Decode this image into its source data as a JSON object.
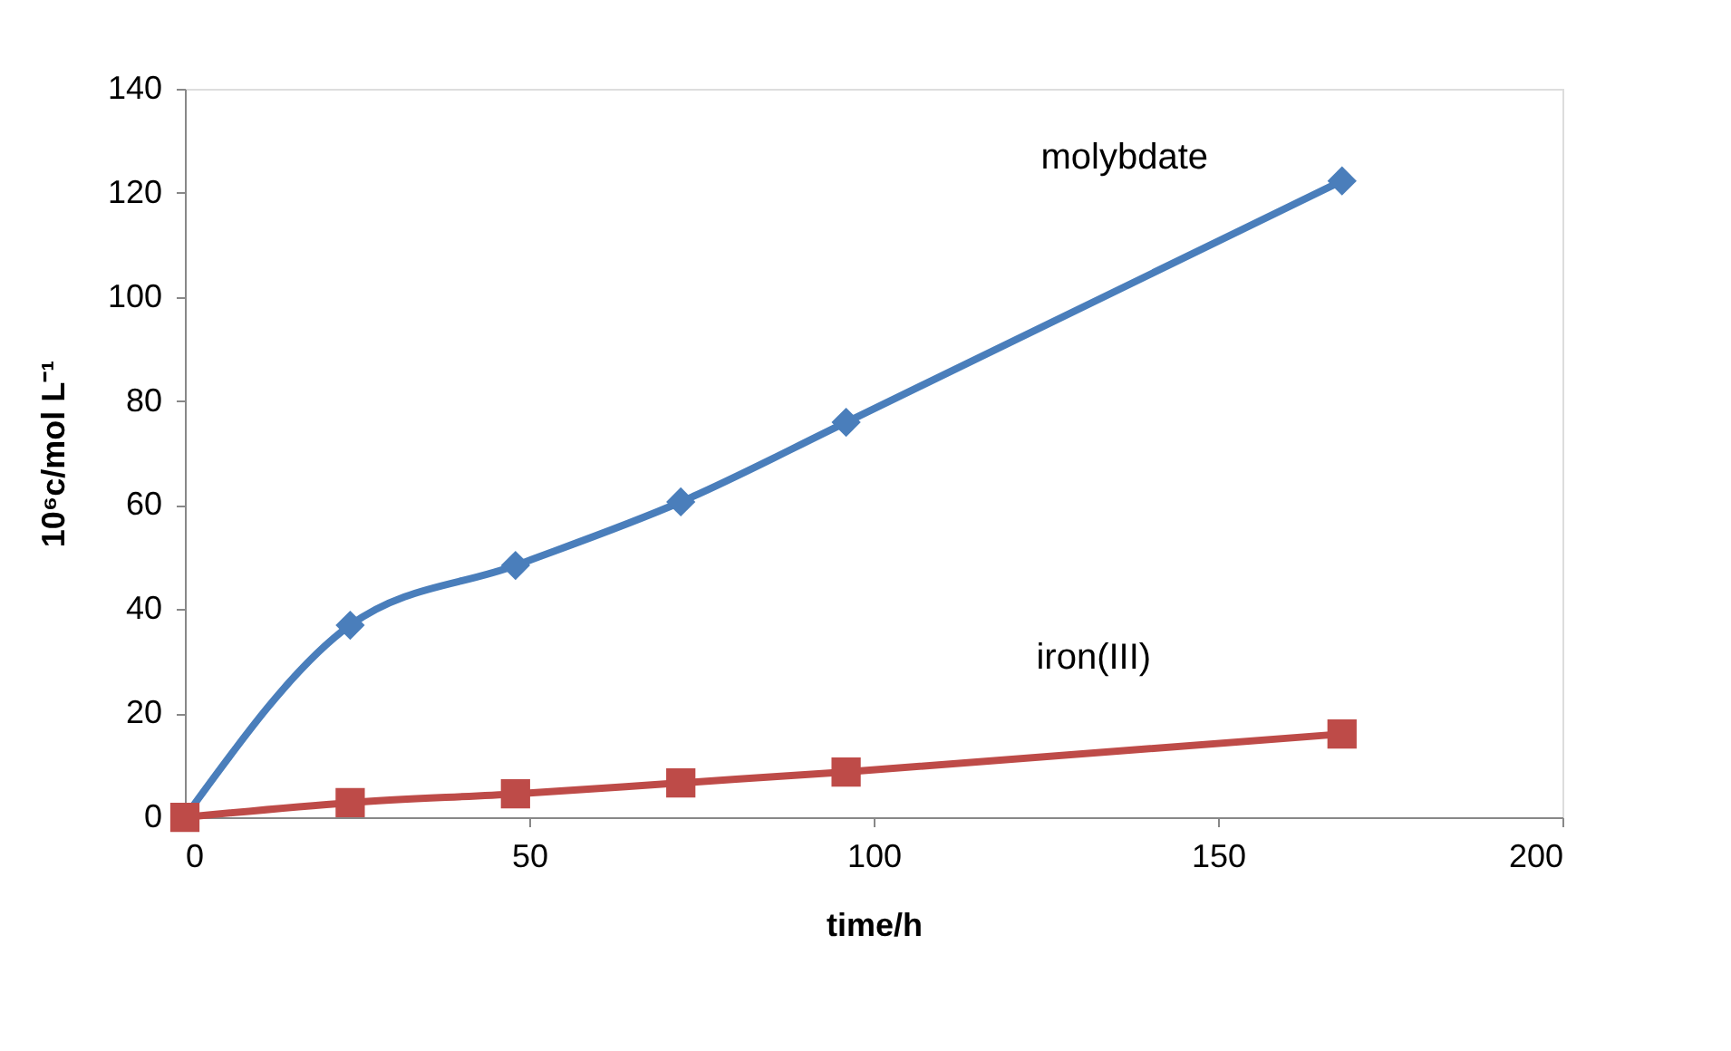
{
  "chart_data": {
    "type": "line",
    "xlabel": "time/h",
    "ylabel": "10⁶c/mol L⁻¹",
    "xlim": [
      0,
      200
    ],
    "xticks": [
      0,
      50,
      100,
      150,
      200
    ],
    "ylim": [
      0,
      140
    ],
    "yticks": [
      0,
      20,
      40,
      60,
      80,
      100,
      120,
      140
    ],
    "grid": false,
    "legend": false,
    "series": [
      {
        "name": "molybdate",
        "color": "#4a7ebb",
        "marker": "diamond",
        "x": [
          0,
          24,
          48,
          72,
          96,
          168
        ],
        "values": [
          0,
          36.9,
          48.4,
          60.6,
          75.9,
          122.3
        ]
      },
      {
        "name": "iron(III)",
        "color": "#be4b48",
        "marker": "square",
        "x": [
          0,
          24,
          48,
          72,
          96,
          168
        ],
        "values": [
          0,
          2.8,
          4.5,
          6.6,
          8.7,
          16.0
        ]
      }
    ]
  }
}
